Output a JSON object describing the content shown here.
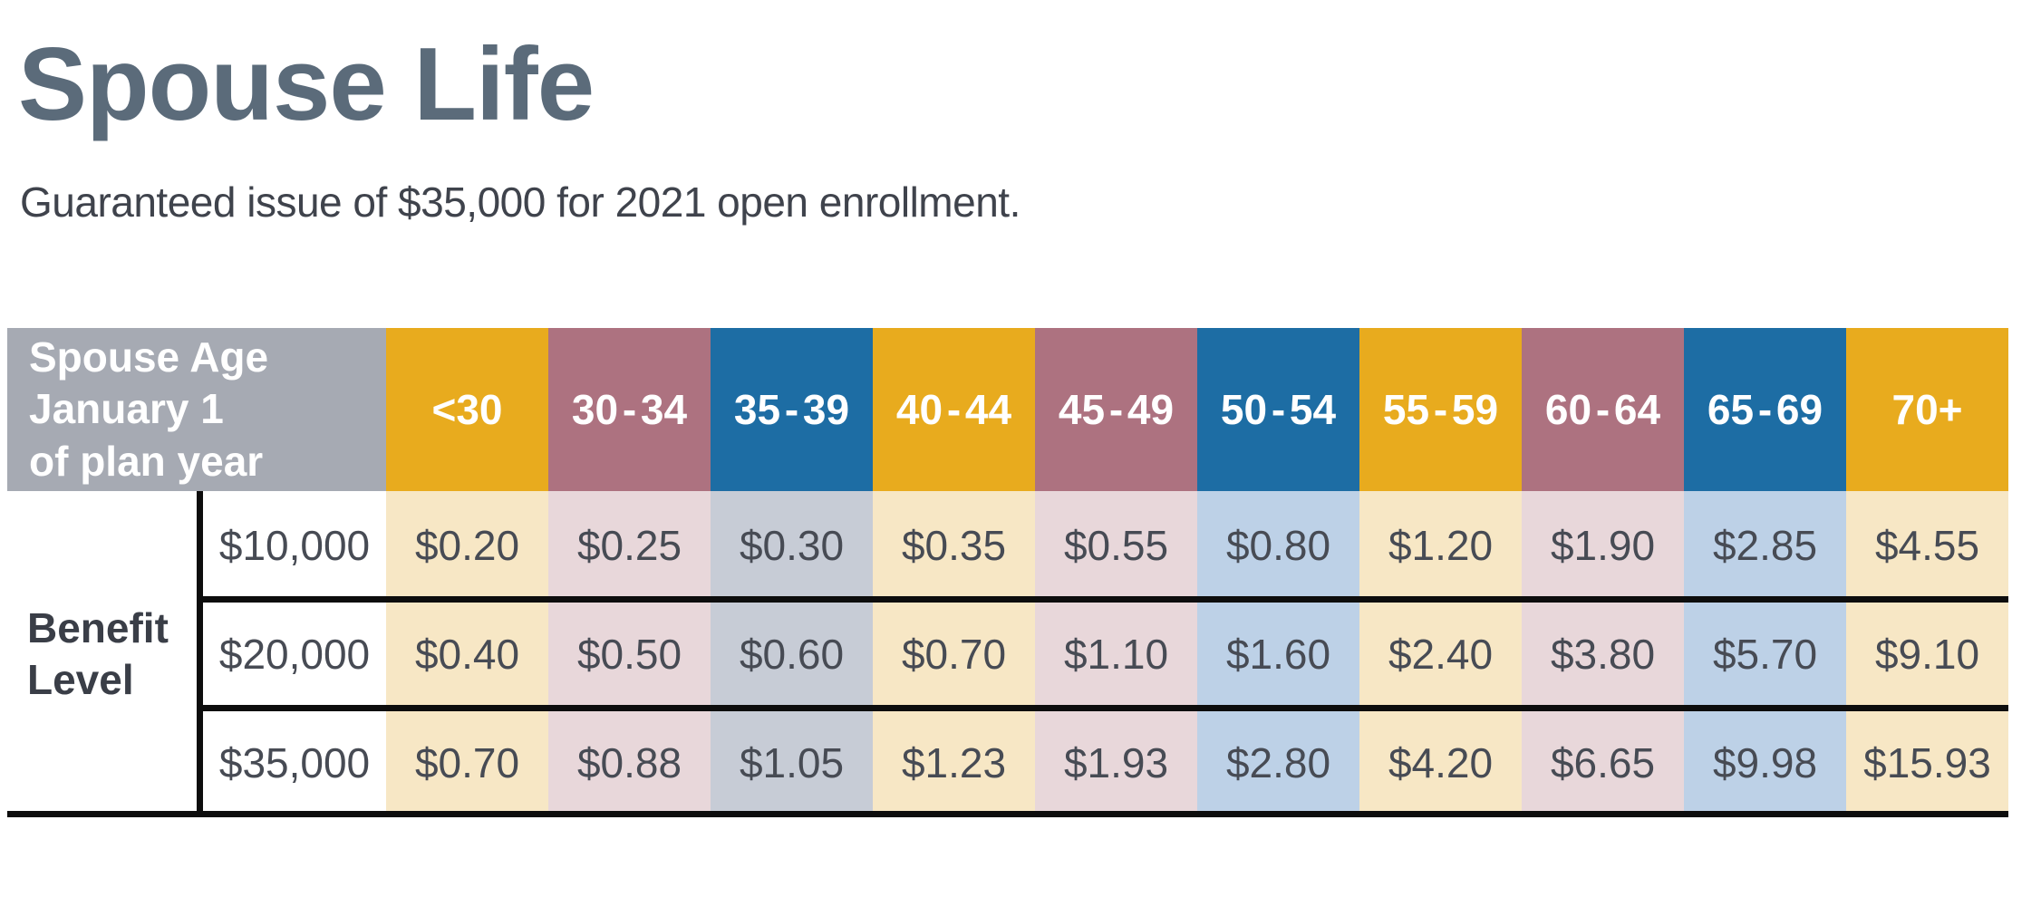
{
  "header": {
    "title": "Spouse Life",
    "subtitle": "Guaranteed issue of $35,000 for 2021 open enrollment."
  },
  "table": {
    "corner_header": "Spouse Age\nJanuary 1\nof plan year",
    "row_group_label": "Benefit\nLevel",
    "columns": [
      {
        "label": "<30",
        "color": "#e8ab1e",
        "tint": "#f7e7c5"
      },
      {
        "label": "30 - 34",
        "color": "#ad7280",
        "tint": "#e8d7da"
      },
      {
        "label": "35 - 39",
        "color": "#1d6da4",
        "tint": "#c7ccd6"
      },
      {
        "label": "40 - 44",
        "color": "#e8ab1e",
        "tint": "#f7e7c5"
      },
      {
        "label": "45 - 49",
        "color": "#ad7280",
        "tint": "#e8d7da"
      },
      {
        "label": "50 - 54",
        "color": "#1d6da4",
        "tint": "#bdd1e7"
      },
      {
        "label": "55 - 59",
        "color": "#e8ab1e",
        "tint": "#f7e7c5"
      },
      {
        "label": "60 - 64",
        "color": "#ad7280",
        "tint": "#e8d7da"
      },
      {
        "label": "65 - 69",
        "color": "#1d6da4",
        "tint": "#bdd1e7"
      },
      {
        "label": "70+",
        "color": "#e8ab1e",
        "tint": "#f7e7c5"
      }
    ],
    "rows": [
      {
        "amount": "$10,000",
        "rates": [
          "$0.20",
          "$0.25",
          "$0.30",
          "$0.35",
          "$0.55",
          "$0.80",
          "$1.20",
          "$1.90",
          "$2.85",
          "$4.55"
        ]
      },
      {
        "amount": "$20,000",
        "rates": [
          "$0.40",
          "$0.50",
          "$0.60",
          "$0.70",
          "$1.10",
          "$1.60",
          "$2.40",
          "$3.80",
          "$5.70",
          "$9.10"
        ]
      },
      {
        "amount": "$35,000",
        "rates": [
          "$0.70",
          "$0.88",
          "$1.05",
          "$1.23",
          "$1.93",
          "$2.80",
          "$4.20",
          "$6.65",
          "$9.98",
          "$15.93"
        ]
      }
    ],
    "colors": {
      "corner_header_bg": "#a6aab3",
      "header_text": "#ffffff",
      "cell_text": "#474b54",
      "grid_line": "#0d0d0d"
    }
  },
  "colors": {
    "title_text": "#5b6b7a",
    "subtitle_text": "#3f434c",
    "background": "#ffffff"
  }
}
